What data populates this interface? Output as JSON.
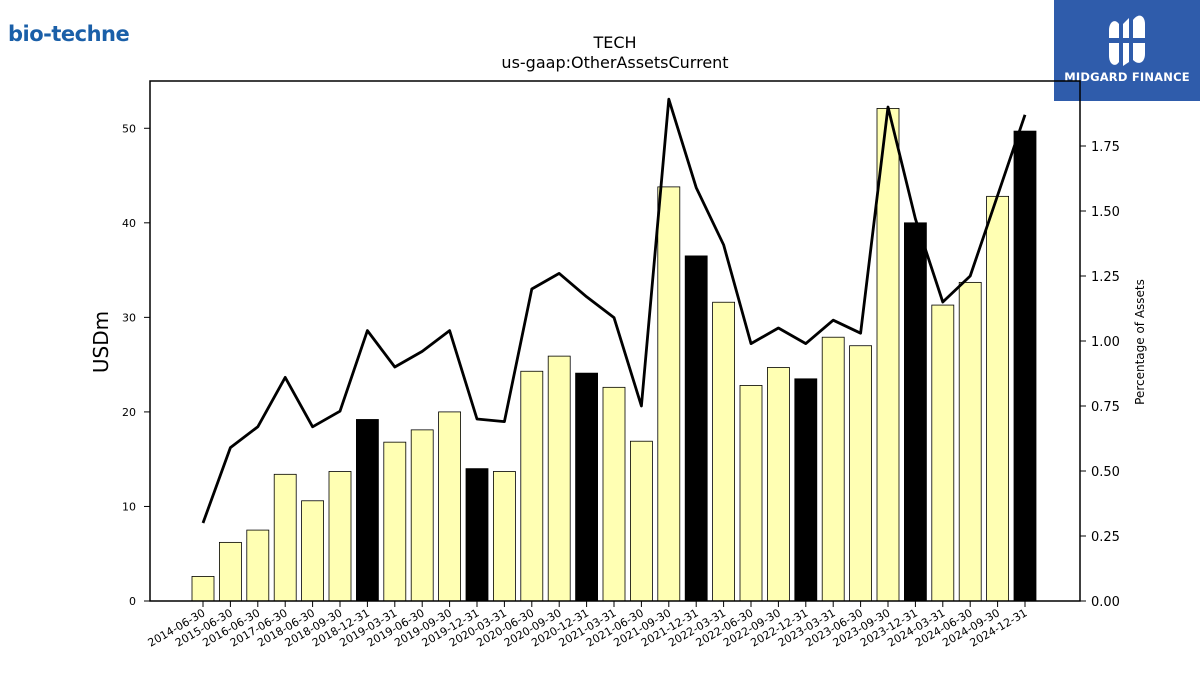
{
  "branding": {
    "left_logo_text": "bio-techne",
    "right_logo_name": "MIDGARD FINANCE"
  },
  "colors": {
    "bar_default": "#ffffb3",
    "bar_highlight": "#000000",
    "bar_outline": "#000000",
    "line": "#000000",
    "right_logo_bg": "#2f5cab",
    "left_logo_text": "#1a5fa8"
  },
  "chart_data": {
    "type": "bar",
    "title": "TECH",
    "subtitle": "us-gaap:OtherAssetsCurrent",
    "ylabel": "USDm",
    "y2label": "Percentage of Assets",
    "ylim": [
      0,
      55
    ],
    "y2lim": [
      0,
      2.0
    ],
    "yticks": [
      0,
      10,
      20,
      30,
      40,
      50
    ],
    "y2ticks": [
      "0.00",
      "0.25",
      "0.50",
      "0.75",
      "1.00",
      "1.25",
      "1.50",
      "1.75"
    ],
    "categories": [
      "2014-06-30",
      "2015-06-30",
      "2016-06-30",
      "2017-06-30",
      "2018-06-30",
      "2018-09-30",
      "2018-12-31",
      "2019-03-31",
      "2019-06-30",
      "2019-09-30",
      "2019-12-31",
      "2020-03-31",
      "2020-06-30",
      "2020-09-30",
      "2020-12-31",
      "2021-03-31",
      "2021-06-30",
      "2021-09-30",
      "2021-12-31",
      "2022-03-31",
      "2022-06-30",
      "2022-09-30",
      "2022-12-31",
      "2023-03-31",
      "2023-06-30",
      "2023-09-30",
      "2023-12-31",
      "2024-03-31",
      "2024-06-30",
      "2024-09-30",
      "2024-12-31"
    ],
    "series": [
      {
        "kind": "bar",
        "axis": "left",
        "values": [
          2.6,
          6.2,
          7.5,
          13.4,
          10.6,
          13.7,
          19.2,
          16.8,
          18.1,
          20.0,
          14.0,
          13.7,
          24.3,
          25.9,
          24.1,
          22.6,
          16.9,
          43.8,
          36.5,
          31.6,
          22.8,
          24.7,
          23.5,
          27.9,
          27.0,
          52.1,
          40.0,
          31.3,
          33.7,
          42.8,
          49.7
        ],
        "highlight": [
          false,
          false,
          false,
          false,
          false,
          false,
          true,
          false,
          false,
          false,
          true,
          false,
          false,
          false,
          true,
          false,
          false,
          false,
          true,
          false,
          false,
          false,
          true,
          false,
          false,
          false,
          true,
          false,
          false,
          false,
          true
        ]
      },
      {
        "kind": "line",
        "axis": "right",
        "values": [
          0.3,
          0.59,
          0.67,
          0.86,
          0.67,
          0.73,
          1.04,
          0.9,
          0.96,
          1.04,
          0.7,
          0.69,
          1.2,
          1.26,
          1.17,
          1.09,
          0.75,
          1.93,
          1.59,
          1.37,
          0.99,
          1.05,
          0.99,
          1.08,
          1.03,
          1.9,
          1.47,
          1.15,
          1.25,
          1.56,
          1.87
        ]
      }
    ],
    "grid": false,
    "legend": "none"
  }
}
